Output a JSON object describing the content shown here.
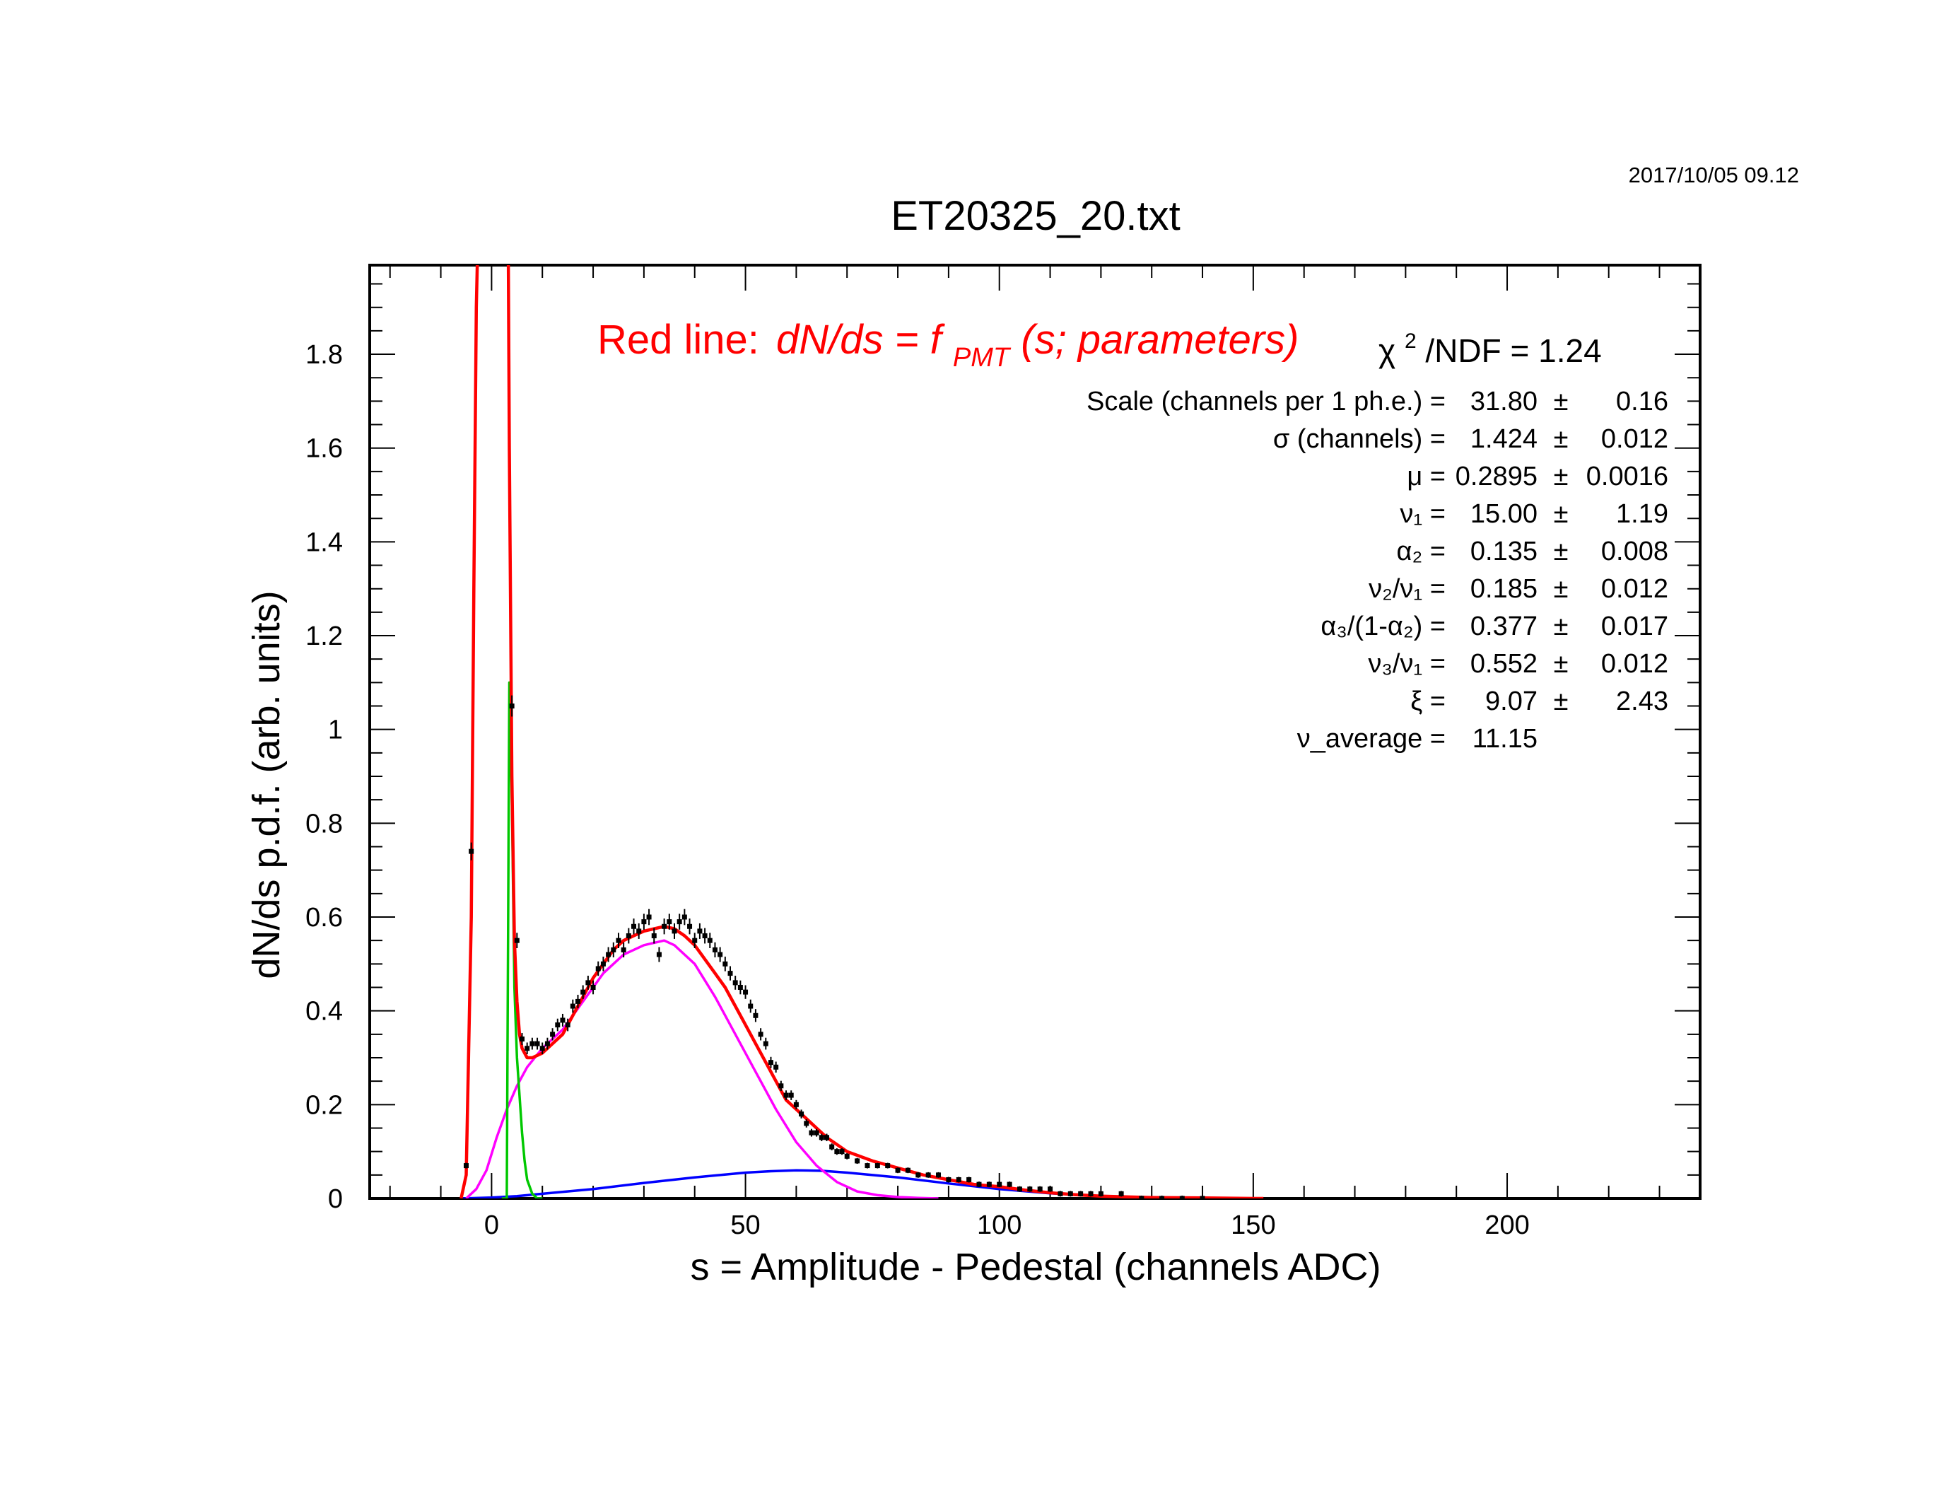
{
  "timestamp": "2017/10/05   09.12",
  "title": "ET20325_20.txt",
  "annotation": {
    "red_prefix": "Red line:",
    "red_formula_a": "dN/ds = f",
    "red_formula_sub": "PMT",
    "red_formula_b": "(s; parameters)",
    "chi2_label": "χ",
    "chi2_sup": "2",
    "chi2_tail": "/NDF   =   1.24"
  },
  "fit_params": [
    {
      "label": "Scale (channels per 1 ph.e.) =",
      "value": "31.80",
      "pm": "±",
      "err": "0.16"
    },
    {
      "label": "σ (channels) =",
      "value": "1.424",
      "pm": "±",
      "err": "0.012"
    },
    {
      "label": "μ  =",
      "value": "0.2895",
      "pm": "±",
      "err": "0.0016"
    },
    {
      "label": "ν₁ =",
      "value": "15.00",
      "pm": "±",
      "err": "1.19"
    },
    {
      "label": "α₂ =",
      "value": "0.135",
      "pm": "±",
      "err": "0.008"
    },
    {
      "label": "ν₂/ν₁ =",
      "value": "0.185",
      "pm": "±",
      "err": "0.012"
    },
    {
      "label": "α₃/(1-α₂) =",
      "value": "0.377",
      "pm": "±",
      "err": "0.017"
    },
    {
      "label": "ν₃/ν₁ =",
      "value": "0.552",
      "pm": "±",
      "err": "0.012"
    },
    {
      "label": "ξ =",
      "value": "9.07",
      "pm": "±",
      "err": "2.43"
    },
    {
      "label": "ν_average  =",
      "value": "11.15",
      "pm": "",
      "err": ""
    }
  ],
  "chart_data": {
    "type": "scatter",
    "title": "ET20325_20.txt",
    "xlabel": "s = Amplitude - Pedestal (channels ADC)",
    "ylabel": "dN/ds p.d.f. (arb. units)",
    "xlim": [
      -24,
      238
    ],
    "ylim": [
      0,
      1.99
    ],
    "x_ticks": [
      0,
      50,
      100,
      150,
      200
    ],
    "y_ticks": [
      0,
      0.2,
      0.4,
      0.6,
      0.8,
      1,
      1.2,
      1.4,
      1.6,
      1.8
    ],
    "y_tick_labels": [
      "0",
      "0.2",
      "0.4",
      "0.6",
      "0.8",
      "1",
      "1.2",
      "1.4",
      "1.6",
      "1.8"
    ],
    "colors": {
      "total": "#ff0000",
      "pedestal": "#00c800",
      "single_pe": "#ff00ff",
      "background": "#0000ff",
      "data": "#000000"
    },
    "fit_params": {
      "scale": 31.8,
      "sigma": 1.424,
      "mu": 0.2895,
      "nu1": 15.0,
      "alpha2": 0.135,
      "nu2_over_nu1": 0.185,
      "alpha3_norm": 0.377,
      "nu3_over_nu1": 0.552,
      "xi": 9.07,
      "nu_average": 11.15
    },
    "series": [
      {
        "role": "data",
        "x": [
          -5,
          -4,
          4,
          5,
          6,
          7,
          8,
          9,
          10,
          11,
          12,
          13,
          14,
          15,
          16,
          17,
          18,
          19,
          20,
          21,
          22,
          23,
          24,
          25,
          26,
          27,
          28,
          29,
          30,
          31,
          32,
          33,
          34,
          35,
          36,
          37,
          38,
          39,
          40,
          41,
          42,
          43,
          44,
          45,
          46,
          47,
          48,
          49,
          50,
          51,
          52,
          53,
          54,
          55,
          56,
          57,
          58,
          59,
          60,
          61,
          62,
          63,
          64,
          65,
          66,
          67,
          68,
          69,
          70,
          72,
          74,
          76,
          78,
          80,
          82,
          84,
          86,
          88,
          90,
          92,
          94,
          96,
          98,
          100,
          102,
          104,
          106,
          108,
          110,
          112,
          114,
          116,
          118,
          120,
          124,
          128,
          132,
          136,
          140
        ],
        "y": [
          0.07,
          0.74,
          1.05,
          0.55,
          0.34,
          0.32,
          0.33,
          0.33,
          0.32,
          0.33,
          0.35,
          0.37,
          0.38,
          0.37,
          0.41,
          0.42,
          0.44,
          0.46,
          0.45,
          0.49,
          0.5,
          0.52,
          0.53,
          0.55,
          0.53,
          0.56,
          0.58,
          0.57,
          0.59,
          0.6,
          0.56,
          0.52,
          0.58,
          0.59,
          0.57,
          0.59,
          0.6,
          0.58,
          0.55,
          0.57,
          0.56,
          0.55,
          0.53,
          0.52,
          0.5,
          0.48,
          0.46,
          0.45,
          0.44,
          0.41,
          0.39,
          0.35,
          0.33,
          0.29,
          0.28,
          0.24,
          0.22,
          0.22,
          0.2,
          0.18,
          0.16,
          0.14,
          0.14,
          0.13,
          0.13,
          0.11,
          0.1,
          0.1,
          0.09,
          0.08,
          0.07,
          0.07,
          0.07,
          0.06,
          0.06,
          0.05,
          0.05,
          0.05,
          0.04,
          0.04,
          0.04,
          0.03,
          0.03,
          0.03,
          0.03,
          0.02,
          0.02,
          0.02,
          0.02,
          0.01,
          0.01,
          0.01,
          0.01,
          0.01,
          0.01,
          0.0,
          0.0,
          0.0,
          0.0
        ]
      },
      {
        "role": "fit_total",
        "x": [
          -6,
          -5,
          -4,
          -3.5,
          -3,
          -2.8,
          3.3,
          3.5,
          4,
          4.5,
          5,
          5.5,
          6,
          7,
          8,
          10,
          12,
          14,
          16,
          18,
          20,
          22,
          24,
          26,
          28,
          30,
          32,
          34,
          36,
          38,
          40,
          42,
          44,
          46,
          48,
          50,
          52,
          54,
          56,
          58,
          60,
          62,
          64,
          66,
          68,
          70,
          75,
          80,
          85,
          90,
          95,
          100,
          105,
          110,
          115,
          120,
          130,
          140,
          150,
          152
        ],
        "y": [
          0.0,
          0.05,
          0.6,
          1.3,
          1.9,
          2.0,
          2.0,
          1.6,
          0.9,
          0.55,
          0.42,
          0.35,
          0.32,
          0.3,
          0.3,
          0.31,
          0.33,
          0.35,
          0.39,
          0.43,
          0.47,
          0.5,
          0.53,
          0.55,
          0.56,
          0.57,
          0.575,
          0.58,
          0.575,
          0.56,
          0.54,
          0.51,
          0.48,
          0.45,
          0.41,
          0.37,
          0.33,
          0.29,
          0.25,
          0.21,
          0.19,
          0.17,
          0.15,
          0.13,
          0.115,
          0.1,
          0.08,
          0.065,
          0.05,
          0.04,
          0.03,
          0.025,
          0.018,
          0.012,
          0.008,
          0.005,
          0.002,
          0.001,
          0.0,
          0.0
        ]
      },
      {
        "role": "pedestal",
        "x": [
          2,
          3,
          3.5,
          4,
          4.5,
          5,
          5.5,
          6,
          6.5,
          7,
          8,
          9,
          10
        ],
        "y": [
          0.0,
          0.0,
          1.1,
          0.85,
          0.45,
          0.3,
          0.22,
          0.14,
          0.08,
          0.04,
          0.01,
          0.0,
          0.0
        ]
      },
      {
        "role": "single_pe",
        "x": [
          -5,
          -3,
          -1,
          1,
          3,
          5,
          7,
          10,
          14,
          18,
          22,
          26,
          30,
          34,
          36,
          38,
          40,
          44,
          48,
          52,
          56,
          60,
          64,
          68,
          72,
          76,
          80,
          84,
          88
        ],
        "y": [
          0.0,
          0.02,
          0.06,
          0.13,
          0.19,
          0.24,
          0.28,
          0.32,
          0.36,
          0.42,
          0.48,
          0.52,
          0.54,
          0.55,
          0.54,
          0.52,
          0.5,
          0.43,
          0.35,
          0.27,
          0.19,
          0.12,
          0.07,
          0.035,
          0.015,
          0.007,
          0.003,
          0.001,
          0.0
        ]
      },
      {
        "role": "background",
        "x": [
          -6,
          0,
          5,
          10,
          20,
          30,
          40,
          50,
          55,
          60,
          65,
          70,
          80,
          90,
          100,
          110,
          120,
          130,
          140,
          150
        ],
        "y": [
          0.0,
          0.002,
          0.005,
          0.01,
          0.02,
          0.033,
          0.045,
          0.055,
          0.058,
          0.06,
          0.059,
          0.055,
          0.045,
          0.032,
          0.02,
          0.011,
          0.005,
          0.002,
          0.001,
          0.0
        ]
      }
    ]
  }
}
